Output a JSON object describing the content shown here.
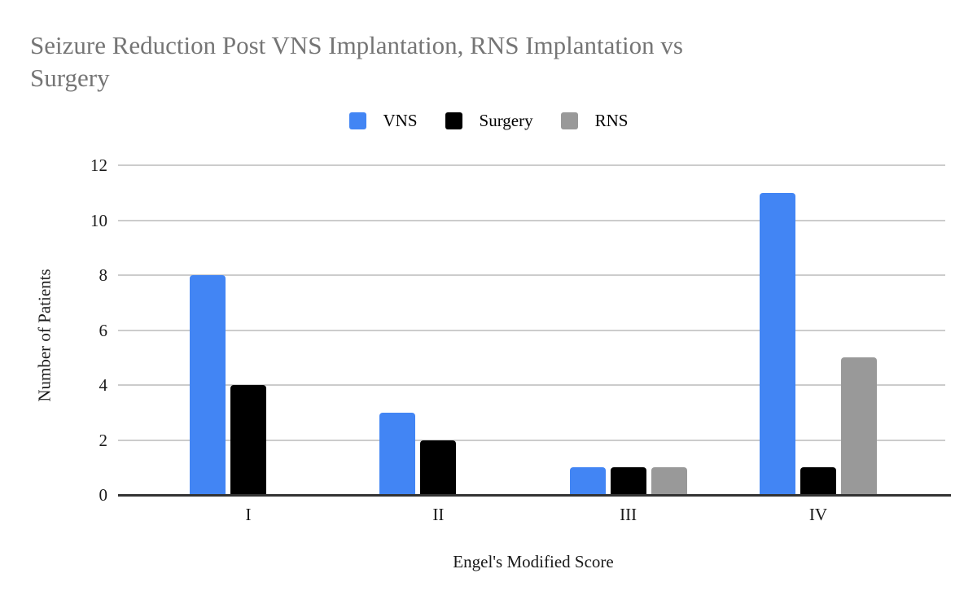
{
  "title": {
    "line1": "Seizure Reduction Post VNS Implantation, RNS Implantation vs",
    "line2": "Surgery",
    "full": "Seizure Reduction Post VNS Implantation, RNS Implantation vs Surgery"
  },
  "chart_data": {
    "type": "bar",
    "title": "Seizure Reduction Post VNS Implantation, RNS Implantation vs Surgery",
    "categories": [
      "I",
      "II",
      "III",
      "IV"
    ],
    "series": [
      {
        "name": "VNS",
        "color": "#4285F4",
        "values": [
          8,
          3,
          1,
          11
        ]
      },
      {
        "name": "Surgery",
        "color": "#000000",
        "values": [
          4,
          2,
          1,
          1
        ]
      },
      {
        "name": "RNS",
        "color": "#999999",
        "values": [
          0,
          0,
          1,
          5
        ]
      }
    ],
    "xlabel": "Engel's Modified Score",
    "ylabel": "Number of Patients",
    "yticks": [
      0,
      2,
      4,
      6,
      8,
      10,
      12
    ],
    "ylim": [
      0,
      12
    ],
    "grid": true,
    "legend_position": "top"
  },
  "colors": {
    "title_text": "#757575",
    "axis_text": "#1a1a1a",
    "gridline": "#CCCCCC",
    "baseline": "#333333",
    "background": "#FFFFFF"
  }
}
